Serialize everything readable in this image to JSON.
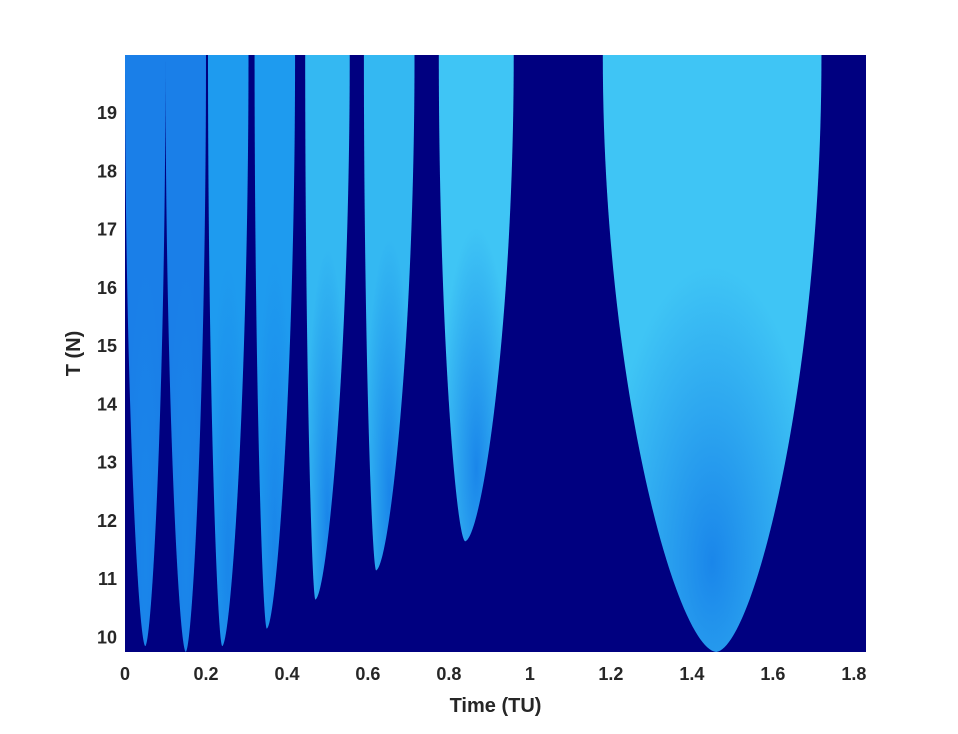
{
  "chart_data": {
    "type": "heatmap",
    "title": "",
    "xlabel": "Time (TU)",
    "ylabel": "T (N)",
    "xlim": [
      0,
      1.83
    ],
    "ylim": [
      9.75,
      20.0
    ],
    "xticks": [
      0,
      0.2,
      0.4,
      0.6,
      0.8,
      1,
      1.2,
      1.4,
      1.6,
      1.8
    ],
    "xtick_labels": [
      "0",
      "0.2",
      "0.4",
      "0.6",
      "0.8",
      "1",
      "1.2",
      "1.4",
      "1.6",
      "1.8"
    ],
    "yticks": [
      10,
      11,
      12,
      13,
      14,
      15,
      16,
      17,
      18,
      19
    ],
    "ytick_labels": [
      "10",
      "11",
      "12",
      "13",
      "14",
      "15",
      "16",
      "17",
      "18",
      "19"
    ],
    "grid": false,
    "legend": "none",
    "colors": {
      "background": "#000080",
      "region_dark": "#1a7fe8",
      "region_mid": "#1e9bef",
      "region_light": "#34b8f2",
      "region_lightest": "#3fc5f5",
      "axis_text": "#262626"
    },
    "regions": [
      {
        "x_min": 0.0,
        "x_max": 0.1,
        "x_tip": 0.05,
        "y_tip": 9.85,
        "shade": "region_dark"
      },
      {
        "x_min": 0.1,
        "x_max": 0.2,
        "x_tip": 0.15,
        "y_tip": 9.75,
        "shade": "region_dark"
      },
      {
        "x_min": 0.205,
        "x_max": 0.305,
        "x_tip": 0.24,
        "y_tip": 9.85,
        "shade": "region_mid"
      },
      {
        "x_min": 0.32,
        "x_max": 0.42,
        "x_tip": 0.35,
        "y_tip": 10.15,
        "shade": "region_mid"
      },
      {
        "x_min": 0.445,
        "x_max": 0.555,
        "x_tip": 0.47,
        "y_tip": 10.65,
        "shade": "region_light"
      },
      {
        "x_min": 0.59,
        "x_max": 0.715,
        "x_tip": 0.62,
        "y_tip": 11.15,
        "shade": "region_light"
      },
      {
        "x_min": 0.775,
        "x_max": 0.96,
        "x_tip": 0.84,
        "y_tip": 11.65,
        "shade": "region_lightest"
      },
      {
        "x_min": 1.18,
        "x_max": 1.72,
        "x_tip": 1.46,
        "y_tip": 9.75,
        "shade": "region_lightest"
      }
    ]
  }
}
